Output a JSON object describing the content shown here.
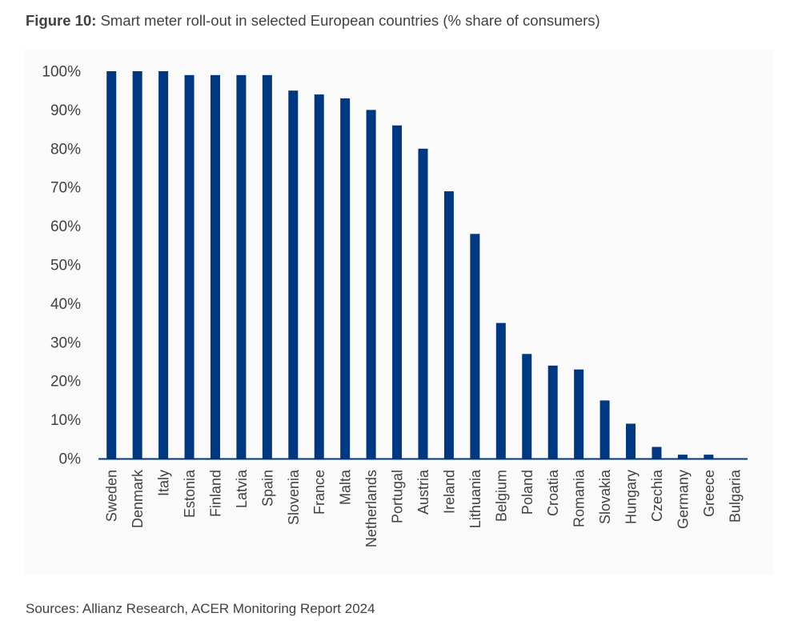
{
  "caption": {
    "label": "Figure 10:",
    "text": "Smart meter roll-out in selected European countries (% share of consumers)"
  },
  "sources": "Sources: Allianz Research, ACER Monitoring Report 2024",
  "colors": {
    "bar": "#003781",
    "axis": "#003781",
    "text": "#414141",
    "panel": "#fafafa"
  },
  "chart_data": {
    "type": "bar",
    "title": "",
    "xlabel": "",
    "ylabel": "",
    "ylim": [
      0,
      100
    ],
    "yticks": [
      0,
      10,
      20,
      30,
      40,
      50,
      60,
      70,
      80,
      90,
      100
    ],
    "ytick_labels": [
      "0%",
      "10%",
      "20%",
      "30%",
      "40%",
      "50%",
      "60%",
      "70%",
      "80%",
      "90%",
      "100%"
    ],
    "grid": false,
    "categories": [
      "Sweden",
      "Denmark",
      "Italy",
      "Estonia",
      "Finland",
      "Latvia",
      "Spain",
      "Slovenia",
      "France",
      "Malta",
      "Netherlands",
      "Portugal",
      "Austria",
      "Ireland",
      "Lithuania",
      "Belgium",
      "Poland",
      "Croatia",
      "Romania",
      "Slovakia",
      "Hungary",
      "Czechia",
      "Germany",
      "Greece",
      "Bulgaria"
    ],
    "values": [
      100,
      100,
      100,
      99,
      99,
      99,
      99,
      95,
      94,
      93,
      90,
      86,
      80,
      69,
      58,
      35,
      27,
      24,
      23,
      15,
      9,
      3,
      1,
      1,
      0
    ]
  }
}
